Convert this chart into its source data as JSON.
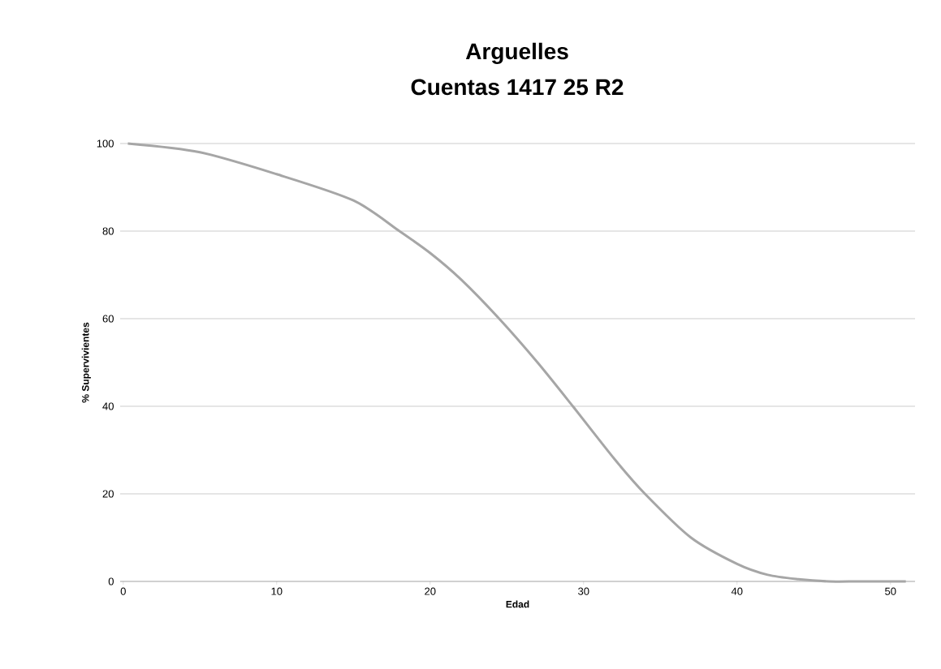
{
  "chart_data": {
    "type": "line",
    "title": "Arguelles\nCuentas 1417 25 R2",
    "xlabel": "Edad",
    "ylabel": "% Supervivientes",
    "x": [
      0.3,
      5,
      10,
      15,
      18,
      20,
      22,
      24.5,
      27,
      29.3,
      32,
      34,
      37,
      40,
      42,
      44,
      46,
      48,
      51
    ],
    "series": [
      {
        "color": "#a6a6a6",
        "values": [
          100,
          98,
          93,
          87,
          80,
          75,
          69,
          60,
          50,
          40,
          28,
          20,
          10,
          4,
          1.5,
          0.5,
          0,
          0,
          0
        ]
      }
    ],
    "xlim": [
      -0.2,
      51.6
    ],
    "ylim": [
      0,
      100
    ],
    "xticks": [
      0,
      10,
      20,
      30,
      40,
      50
    ],
    "yticks": [
      0,
      20,
      40,
      60,
      80,
      100
    ],
    "grid": "y",
    "marker": "none",
    "line_style": "solid"
  }
}
